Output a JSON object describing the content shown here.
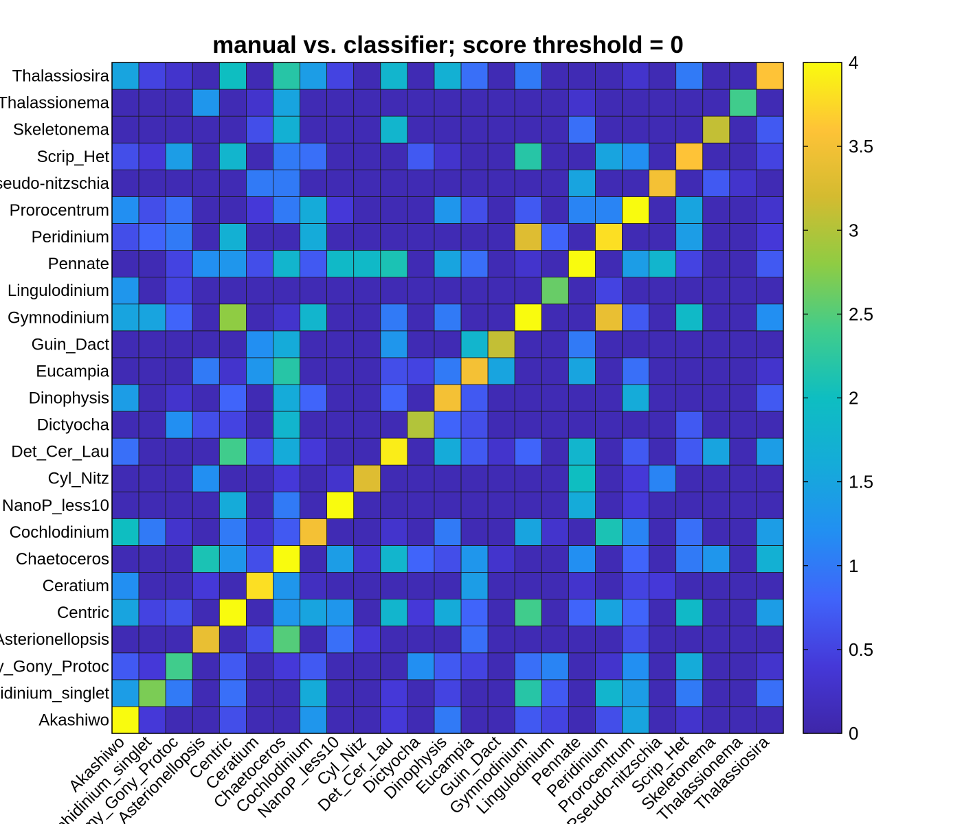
{
  "chart_data": {
    "type": "heatmap",
    "title": "manual vs. classifier; score threshold = 0",
    "xlabel": "",
    "ylabel": "",
    "x_categories": [
      "Akashiwo",
      "Amphidinium_singlet",
      "Amy_Gony_Protoc",
      "Asterionellopsis",
      "Centric",
      "Ceratium",
      "Chaetoceros",
      "Cochlodinium",
      "NanoP_less10",
      "Cyl_Nitz",
      "Det_Cer_Lau",
      "Dictyocha",
      "Dinophysis",
      "Eucampia",
      "Guin_Dact",
      "Gymnodinium",
      "Lingulodinium",
      "Pennate",
      "Peridinium",
      "Prorocentrum",
      "Pseudo-nitzschia",
      "Scrip_Het",
      "Skeletonema",
      "Thalassionema",
      "Thalassiosira"
    ],
    "y_categories": [
      "Akashiwo",
      "Amphidinium_singlet",
      "Amy_Gony_Protoc",
      "Asterionellopsis",
      "Centric",
      "Ceratium",
      "Chaetoceros",
      "Cochlodinium",
      "NanoP_less10",
      "Cyl_Nitz",
      "Det_Cer_Lau",
      "Dictyocha",
      "Dinophysis",
      "Eucampia",
      "Guin_Dact",
      "Gymnodinium",
      "Lingulodinium",
      "Pennate",
      "Peridinium",
      "Prorocentrum",
      "Pseudo-nitzschia",
      "Scrip_Het",
      "Skeletonema",
      "Thalassionema",
      "Thalassiosira"
    ],
    "y_order": "bottom-to-top",
    "values": [
      [
        4,
        0.4,
        0.1,
        0.1,
        0.6,
        0.1,
        0.1,
        1.3,
        0.1,
        0.1,
        0.4,
        0.1,
        1,
        0.1,
        0.1,
        0.7,
        0.5,
        0.1,
        0.6,
        1.5,
        0.1,
        0.3,
        0.1,
        0.1,
        0.1
      ],
      [
        1.4,
        2.7,
        1,
        0.1,
        0.9,
        0.1,
        0.1,
        1.6,
        0.1,
        0.1,
        0.4,
        0.1,
        0.5,
        0.1,
        0.1,
        2.2,
        0.7,
        0.1,
        1.8,
        1.4,
        0.1,
        1,
        0.1,
        0.1,
        0.9
      ],
      [
        0.7,
        0.4,
        2.4,
        0.1,
        0.7,
        0.1,
        0.4,
        0.7,
        0.1,
        0.1,
        0.1,
        1.2,
        0.7,
        0.5,
        0.1,
        0.9,
        1.1,
        0.1,
        0.3,
        1.2,
        0.1,
        1.6,
        0.1,
        0.1,
        0.3
      ],
      [
        0.1,
        0.1,
        0.1,
        3.4,
        0.1,
        0.6,
        2.5,
        0.1,
        0.9,
        0.4,
        0.1,
        0.1,
        0.1,
        0.9,
        0.1,
        0.1,
        0.1,
        0.1,
        0.1,
        0.6,
        0.1,
        0.1,
        0.1,
        0.1,
        0.1
      ],
      [
        1.5,
        0.5,
        0.6,
        0.1,
        4,
        0.1,
        1.3,
        1.5,
        1.3,
        0.1,
        1.8,
        0.4,
        1.6,
        0.8,
        0.1,
        2.4,
        0.1,
        0.8,
        1.5,
        0.8,
        0.1,
        1.9,
        0.1,
        0.1,
        1.4
      ],
      [
        1.2,
        0.1,
        0.1,
        0.4,
        0.1,
        3.8,
        1.3,
        0.2,
        0.1,
        0.1,
        0.1,
        0.1,
        0.1,
        1.4,
        0.1,
        0.1,
        0.1,
        0.3,
        0.1,
        0.5,
        0.4,
        0.1,
        0.1,
        0.1,
        0.1
      ],
      [
        0.1,
        0.1,
        0.1,
        2.1,
        1.3,
        0.6,
        4,
        0.1,
        1.4,
        0.3,
        1.8,
        0.8,
        0.6,
        1.3,
        0.3,
        0.1,
        0.1,
        1.2,
        0.1,
        0.8,
        0.1,
        1,
        1.3,
        0.1,
        1.7
      ],
      [
        2,
        1,
        0.3,
        0.1,
        1,
        0.3,
        0.7,
        3.5,
        0.1,
        0.1,
        0.3,
        0.1,
        1,
        0.1,
        0.1,
        1.5,
        0.3,
        0.1,
        2.1,
        1.1,
        0.1,
        0.9,
        0.1,
        0.1,
        1.4
      ],
      [
        0.1,
        0.1,
        0.1,
        0.1,
        1.6,
        0.1,
        1,
        0.1,
        4,
        0.1,
        0.1,
        0.1,
        0.1,
        0.1,
        0.1,
        0.1,
        0.1,
        1.6,
        0.1,
        0.4,
        0.1,
        0.1,
        0.1,
        0.1,
        0.1
      ],
      [
        0.1,
        0.1,
        0.1,
        1.2,
        0.1,
        0.1,
        0.4,
        0.1,
        0.3,
        3.3,
        0.1,
        0.1,
        0.1,
        0.1,
        0.1,
        0.1,
        0.1,
        2,
        0.1,
        0.4,
        1.1,
        0.1,
        0.1,
        0.1,
        0.1
      ],
      [
        0.9,
        0.1,
        0.1,
        0.1,
        2.4,
        0.6,
        1.6,
        0.4,
        0.1,
        0.1,
        3.9,
        0.1,
        1.6,
        0.7,
        0.3,
        0.8,
        0.1,
        1.8,
        0.1,
        0.7,
        0.1,
        0.7,
        1.5,
        0.1,
        1.4
      ],
      [
        0.1,
        0.1,
        1.2,
        0.6,
        0.5,
        0.1,
        1.8,
        0.1,
        0.1,
        0.1,
        0.1,
        3,
        0.8,
        0.6,
        0.1,
        0.1,
        0.1,
        0.1,
        0.1,
        0.1,
        0.1,
        0.7,
        0.1,
        0.1,
        0.1
      ],
      [
        1.4,
        0.1,
        0.3,
        0.1,
        0.8,
        0.1,
        1.6,
        0.8,
        0.1,
        0.1,
        0.8,
        0.1,
        3.5,
        0.7,
        0.1,
        0.1,
        0.1,
        0.1,
        0.1,
        1.6,
        0.1,
        0.1,
        0.1,
        0.1,
        0.7
      ],
      [
        0.1,
        0.1,
        0.1,
        1,
        0.3,
        1.3,
        2.2,
        0.1,
        0.1,
        0.1,
        0.6,
        0.5,
        1,
        3.5,
        1.5,
        0.1,
        0.1,
        1.5,
        0.1,
        0.9,
        0.1,
        0.1,
        0.1,
        0.1,
        0.3
      ],
      [
        0.1,
        0.1,
        0.1,
        0.1,
        0.1,
        1.2,
        1.6,
        0.1,
        0.1,
        0.1,
        1.3,
        0.1,
        0.1,
        1.8,
        3.1,
        0.1,
        0.1,
        1,
        0.1,
        0.1,
        0.1,
        0.1,
        0.1,
        0.1,
        0.1
      ],
      [
        1.5,
        1.5,
        0.8,
        0.1,
        2.8,
        0.1,
        0.3,
        1.8,
        0.1,
        0.1,
        1,
        0.1,
        1,
        0.1,
        0.1,
        4,
        0.1,
        0.1,
        3.4,
        0.7,
        0.1,
        1.9,
        0.1,
        0.1,
        1.2
      ],
      [
        1.3,
        0.1,
        0.5,
        0.1,
        0.1,
        0.1,
        0.1,
        0.1,
        0.1,
        0.1,
        0.1,
        0.1,
        0.1,
        0.1,
        0.1,
        0.1,
        2.6,
        0.1,
        0.5,
        0.1,
        0.1,
        0.1,
        0.1,
        0.1,
        0.1
      ],
      [
        0.1,
        0.1,
        0.5,
        1.2,
        1.3,
        0.6,
        1.8,
        0.7,
        1.9,
        1.9,
        2.1,
        0.1,
        1.5,
        0.9,
        0.1,
        0.3,
        0.1,
        4,
        0.1,
        1.4,
        1.8,
        0.5,
        0.1,
        0.1,
        0.7
      ],
      [
        0.6,
        0.8,
        1,
        0.1,
        1.7,
        0.1,
        0.1,
        1.6,
        0.1,
        0.1,
        0.1,
        0.1,
        0.1,
        0.1,
        0.1,
        3.3,
        0.8,
        0.1,
        3.8,
        0.1,
        0.1,
        1.4,
        0.1,
        0.1,
        0.4
      ],
      [
        1.2,
        0.6,
        0.9,
        0.1,
        0.1,
        0.4,
        1,
        1.6,
        0.4,
        0.1,
        0.1,
        0.1,
        1.3,
        0.6,
        0.1,
        0.7,
        0.1,
        1.1,
        1.1,
        4,
        0.1,
        1.5,
        0.1,
        0.1,
        0.3
      ],
      [
        0.1,
        0.1,
        0.1,
        0.1,
        0.1,
        1,
        1,
        0.1,
        0.1,
        0.1,
        0.1,
        0.1,
        0.1,
        0.1,
        0.1,
        0.1,
        0.1,
        1.5,
        0.1,
        0.1,
        3.5,
        0.1,
        0.7,
        0.3,
        0.1
      ],
      [
        0.6,
        0.4,
        1.4,
        0.1,
        1.8,
        0.1,
        1,
        0.9,
        0.1,
        0.1,
        0.1,
        0.7,
        0.3,
        0.1,
        0.1,
        2.2,
        0.1,
        0.1,
        1.5,
        1.2,
        0.1,
        3.6,
        0.1,
        0.1,
        0.5
      ],
      [
        0.1,
        0.1,
        0.1,
        0.1,
        0.1,
        0.6,
        1.7,
        0.1,
        0.1,
        0.1,
        1.8,
        0.1,
        0.1,
        0.1,
        0.1,
        0.1,
        0.1,
        0.9,
        0.1,
        0.1,
        0.1,
        0.1,
        3.1,
        0.1,
        0.7
      ],
      [
        0.1,
        0.1,
        0.1,
        1.3,
        0.1,
        0.3,
        1.5,
        0.1,
        0.1,
        0.1,
        0.1,
        0.1,
        0.1,
        0.1,
        0.1,
        0.1,
        0.1,
        0.3,
        0.1,
        0.1,
        0.1,
        0.1,
        0.1,
        2.4,
        0.1
      ],
      [
        1.5,
        0.5,
        0.3,
        0.1,
        2,
        0.1,
        2.2,
        1.4,
        0.5,
        0.1,
        1.8,
        0.1,
        1.7,
        0.9,
        0.1,
        1,
        0.1,
        0.1,
        0.1,
        0.3,
        0.1,
        1,
        0.1,
        0.1,
        3.6
      ]
    ],
    "colorbar": {
      "min": 0,
      "max": 4,
      "ticks": [
        "0",
        "0.5",
        "1",
        "1.5",
        "2",
        "2.5",
        "3",
        "3.5",
        "4"
      ],
      "colormap": "parula"
    },
    "grid": false,
    "legend": "none"
  }
}
